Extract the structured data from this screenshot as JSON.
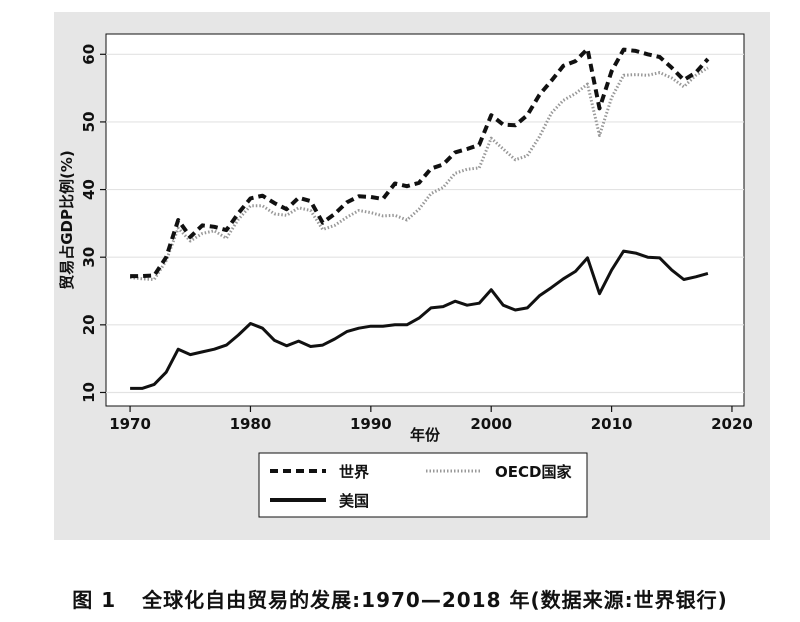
{
  "chart_data": {
    "type": "line",
    "title": "",
    "xlabel": "年份",
    "ylabel": "贸易占GDP比例(%)",
    "xlim": [
      1968,
      2021
    ],
    "ylim": [
      8,
      63
    ],
    "xticks": [
      1970,
      1980,
      1990,
      2000,
      2010,
      2020
    ],
    "yticks": [
      10,
      20,
      30,
      40,
      50,
      60
    ],
    "grid": "horizontal",
    "legend_position": "bottom",
    "x": [
      1970,
      1971,
      1972,
      1973,
      1974,
      1975,
      1976,
      1977,
      1978,
      1979,
      1980,
      1981,
      1982,
      1983,
      1984,
      1985,
      1986,
      1987,
      1988,
      1989,
      1990,
      1991,
      1992,
      1993,
      1994,
      1995,
      1996,
      1997,
      1998,
      1999,
      2000,
      2001,
      2002,
      2003,
      2004,
      2005,
      2006,
      2007,
      2008,
      2009,
      2010,
      2011,
      2012,
      2013,
      2014,
      2015,
      2016,
      2017,
      2018
    ],
    "series": [
      {
        "name": "世界",
        "style": "dashed",
        "color": "#111111",
        "values": [
          27.2,
          27.2,
          27.3,
          30.0,
          35.5,
          33.0,
          34.7,
          34.5,
          34.0,
          36.5,
          38.7,
          39.1,
          38.0,
          37.1,
          38.8,
          38.3,
          35.1,
          36.4,
          38.1,
          39.0,
          38.9,
          38.6,
          40.9,
          40.5,
          41.0,
          43.1,
          43.7,
          45.5,
          46.0,
          46.6,
          51.0,
          49.6,
          49.5,
          51.0,
          54.0,
          56.1,
          58.3,
          59.0,
          60.8,
          52.0,
          57.5,
          60.7,
          60.5,
          60.0,
          59.6,
          58.0,
          56.2,
          57.3,
          59.3
        ]
      },
      {
        "name": "OECD国家",
        "style": "dotted",
        "color": "#999999",
        "values": [
          27.0,
          26.8,
          26.7,
          29.5,
          34.3,
          32.4,
          33.5,
          33.9,
          32.8,
          35.6,
          37.6,
          37.6,
          36.4,
          36.2,
          37.3,
          36.9,
          34.1,
          34.7,
          35.9,
          36.9,
          36.6,
          36.1,
          36.2,
          35.5,
          37.1,
          39.4,
          40.3,
          42.4,
          43.0,
          43.2,
          47.6,
          46.0,
          44.4,
          45.0,
          47.8,
          51.3,
          53.2,
          54.2,
          55.6,
          48.0,
          53.6,
          56.9,
          57.0,
          56.9,
          57.3,
          56.5,
          55.2,
          56.9,
          58.0
        ]
      },
      {
        "name": "美国",
        "style": "solid",
        "color": "#111111",
        "values": [
          10.6,
          10.6,
          11.2,
          13.0,
          16.4,
          15.6,
          16.0,
          16.4,
          17.0,
          18.5,
          20.2,
          19.5,
          17.7,
          16.9,
          17.6,
          16.8,
          17.0,
          17.9,
          19.0,
          19.5,
          19.8,
          19.8,
          20.0,
          20.0,
          21.0,
          22.5,
          22.7,
          23.5,
          22.9,
          23.2,
          25.2,
          22.9,
          22.2,
          22.5,
          24.3,
          25.5,
          26.8,
          27.9,
          29.9,
          24.6,
          28.1,
          30.9,
          30.6,
          30.0,
          29.9,
          28.1,
          26.7,
          27.1,
          27.6
        ]
      }
    ],
    "legend": {
      "world": "世界",
      "oecd": "OECD国家",
      "usa": "美国"
    },
    "colors": {
      "panel": "#e6e6e6",
      "plot": "#ffffff",
      "grid": "#e3e3e3",
      "ink": "#111111",
      "oecd": "#999999"
    }
  },
  "caption": {
    "figure_no": "图 1",
    "text": "全球化自由贸易的发展:1970—2018 年(数据来源:世界银行)"
  }
}
